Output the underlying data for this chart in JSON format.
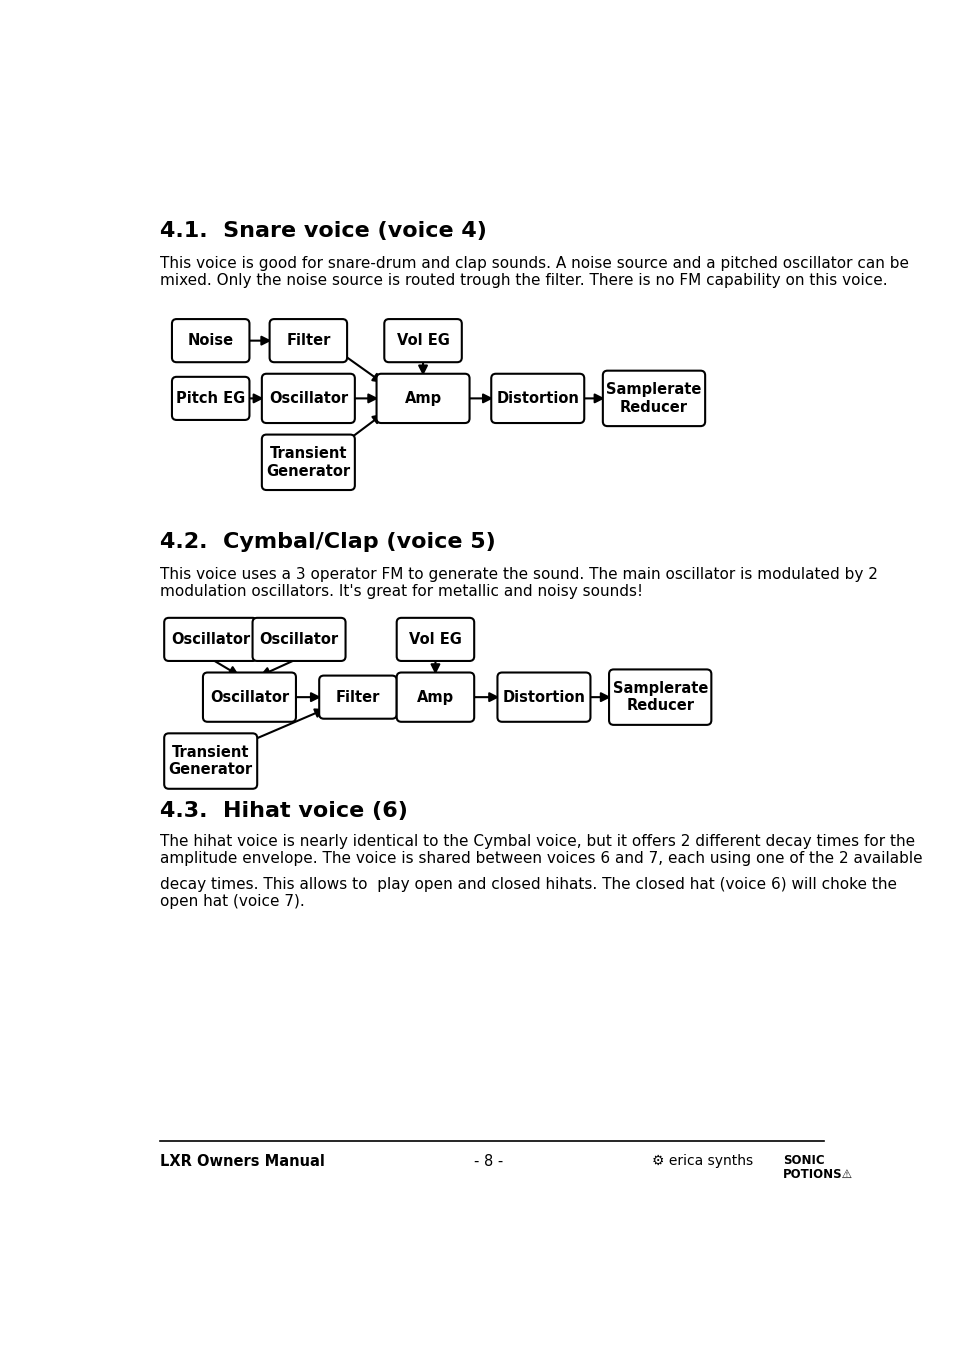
{
  "page_bg": "#ffffff",
  "section1_title": "4.1.  Snare voice (voice 4)",
  "section1_body_line1": "This voice is good for snare-drum and clap sounds. A noise source and a pitched oscillator can be",
  "section1_body_line2": "mixed. Only the noise source is routed trough the filter. There is no FM capability on this voice.",
  "section2_title": "4.2.  Cymbal/Clap (voice 5)",
  "section2_body_line1": "This voice uses a 3 operator FM to generate the sound. The main oscillator is modulated by 2",
  "section2_body_line2": "modulation oscillators. It's great for metallic and noisy sounds!",
  "section3_title": "4.3.  Hihat voice (6)",
  "section3_body_line1": "The hihat voice is nearly identical to the Cymbal voice, but it offers 2 different decay times for the",
  "section3_body_line2": "amplitude envelope. The voice is shared between voices 6 and 7, each using one of the 2 available",
  "section3_body_line3": "decay times. This allows to  play open and closed hihats. The closed hat (voice 6) will choke the",
  "section3_body_line4": "open hat (voice 7).",
  "footer_left": "LXR Owners Manual",
  "footer_center": "- 8 -",
  "footer_right1": "⚙ erica synths",
  "footer_right2": "SONIC\nPOTIONS⚠"
}
